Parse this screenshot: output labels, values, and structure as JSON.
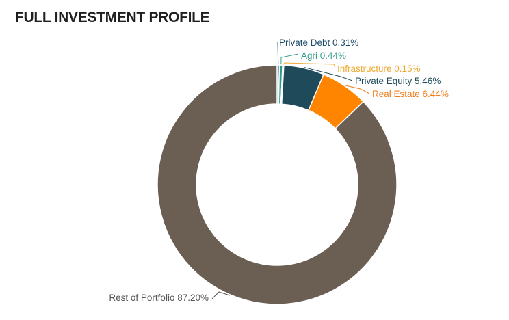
{
  "chart_data": {
    "type": "pie",
    "subtype": "donut",
    "title": "FULL INVESTMENT PROFILE",
    "legend": "none",
    "slices": [
      {
        "label": "Private Debt",
        "value": 0.31,
        "value_label": "0.31%",
        "color": "#1d4e6b",
        "label_color": "#1d4e6b"
      },
      {
        "label": "Agri",
        "value": 0.44,
        "value_label": "0.44%",
        "color": "#2a9d8f",
        "label_color": "#3a9e8c"
      },
      {
        "label": "Infrastructure",
        "value": 0.15,
        "value_label": "0.15%",
        "color": "#f2b035",
        "label_color": "#eeab33"
      },
      {
        "label": "Private Equity",
        "value": 5.46,
        "value_label": "5.46%",
        "color": "#1f4a5a",
        "label_color": "#1f4a5a"
      },
      {
        "label": "Real Estate",
        "value": 6.44,
        "value_label": "6.44%",
        "color": "#ff8500",
        "label_color": "#f07d1a"
      },
      {
        "label": "Rest of Portfolio",
        "value": 87.2,
        "value_label": "87.20%",
        "color": "#6b5e53",
        "label_color": "#555555"
      }
    ]
  }
}
